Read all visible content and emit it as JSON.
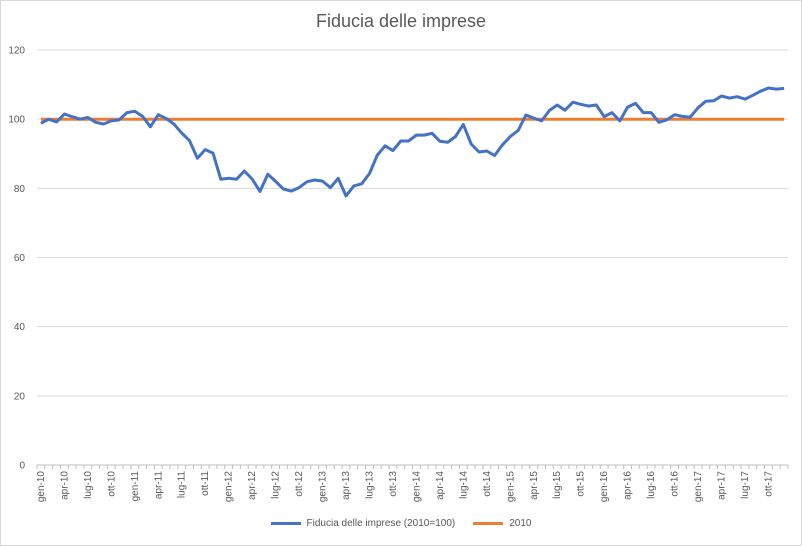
{
  "chart_data": {
    "type": "line",
    "title": "Fiducia delle imprese",
    "xlabel": "",
    "ylabel": "",
    "ylim": [
      0,
      120
    ],
    "yticks": [
      0,
      20,
      40,
      60,
      80,
      100,
      120
    ],
    "grid": true,
    "legend_position": "bottom",
    "x_labels": [
      "gen-10",
      "apr-10",
      "lug-10",
      "ott-10",
      "gen-11",
      "apr-11",
      "lug-11",
      "ott-11",
      "gen-12",
      "apr-12",
      "lug-12",
      "ott-12",
      "gen-13",
      "apr-13",
      "lug-13",
      "ott-13",
      "gen-14",
      "apr-14",
      "lug-14",
      "ott-14",
      "gen-15",
      "apr-15",
      "lug-15",
      "ott-15",
      "gen-16",
      "apr-16",
      "lug-16",
      "ott-16",
      "gen-17",
      "apr-17",
      "lug-17",
      "ott-17"
    ],
    "series": [
      {
        "name": "Fiducia delle imprese (2010=100)",
        "color": "#4472c4",
        "values": [
          98.8,
          100.0,
          99.2,
          101.5,
          100.7,
          100.0,
          100.5,
          99.1,
          98.6,
          99.5,
          99.8,
          101.9,
          102.3,
          100.8,
          97.8,
          101.3,
          100.2,
          98.6,
          96.0,
          93.8,
          88.7,
          91.2,
          90.2,
          82.6,
          82.9,
          82.6,
          85.0,
          82.7,
          79.1,
          84.1,
          82.0,
          79.8,
          79.2,
          80.2,
          81.9,
          82.4,
          82.1,
          80.2,
          82.9,
          77.8,
          80.7,
          81.3,
          84.3,
          89.6,
          92.3,
          90.9,
          93.7,
          93.7,
          95.4,
          95.4,
          95.9,
          93.6,
          93.3,
          95.0,
          98.5,
          92.8,
          90.5,
          90.8,
          89.5,
          92.6,
          95.0,
          96.7,
          101.2,
          100.3,
          99.5,
          102.5,
          104.1,
          102.6,
          104.9,
          104.3,
          103.8,
          104.1,
          100.7,
          101.9,
          99.5,
          103.5,
          104.6,
          101.9,
          101.9,
          99.1,
          99.8,
          101.3,
          100.8,
          100.6,
          103.3,
          105.2,
          105.3,
          106.7,
          106.1,
          106.5,
          105.8,
          106.9,
          108.1,
          109.0,
          108.7,
          108.9
        ]
      },
      {
        "name": "2010",
        "color": "#ed7d31",
        "values": [
          100,
          100,
          100,
          100,
          100,
          100,
          100,
          100,
          100,
          100,
          100,
          100,
          100,
          100,
          100,
          100,
          100,
          100,
          100,
          100,
          100,
          100,
          100,
          100,
          100,
          100,
          100,
          100,
          100,
          100,
          100,
          100,
          100,
          100,
          100,
          100,
          100,
          100,
          100,
          100,
          100,
          100,
          100,
          100,
          100,
          100,
          100,
          100,
          100,
          100,
          100,
          100,
          100,
          100,
          100,
          100,
          100,
          100,
          100,
          100,
          100,
          100,
          100,
          100,
          100,
          100,
          100,
          100,
          100,
          100,
          100,
          100,
          100,
          100,
          100,
          100,
          100,
          100,
          100,
          100,
          100,
          100,
          100,
          100,
          100,
          100,
          100,
          100,
          100,
          100,
          100,
          100,
          100,
          100,
          100,
          100
        ]
      }
    ]
  }
}
